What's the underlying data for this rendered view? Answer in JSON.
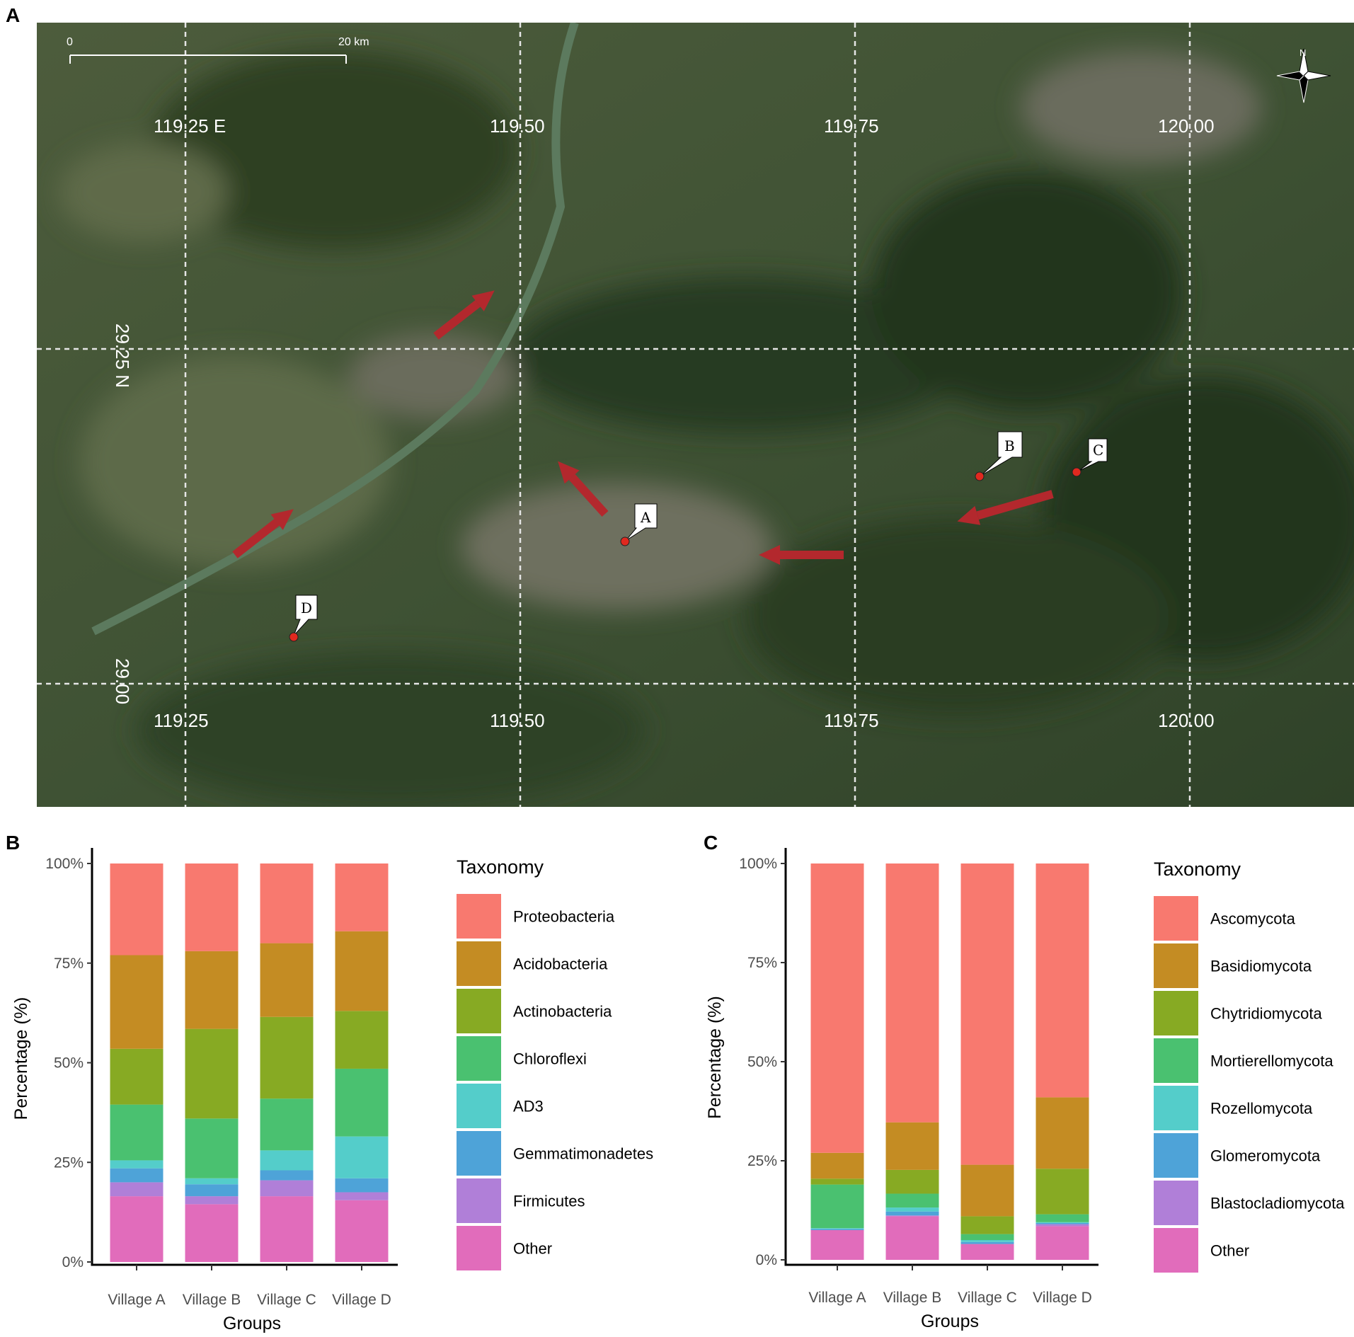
{
  "panels": {
    "a": "A",
    "b": "B",
    "c": "C"
  },
  "map": {
    "scale_bar": {
      "start": "0",
      "end": "20 km"
    },
    "north_label": "N",
    "lon_labels_top": [
      "119.25 E",
      "119.50",
      "119.75",
      "120.00"
    ],
    "lon_labels_bottom": [
      "119.25",
      "119.50",
      "119.75",
      "120.00"
    ],
    "lat_labels": [
      "29.25 N",
      "29.00"
    ],
    "sites": [
      "A",
      "B",
      "C",
      "D"
    ],
    "colors": {
      "arrow": "#b3282d",
      "site": "#e0291f"
    }
  },
  "chart_data": [
    {
      "type": "bar",
      "stacked": true,
      "categories": [
        "Village A",
        "Village B",
        "Village C",
        "Village D"
      ],
      "xlabel": "Groups",
      "ylabel": "Percentage (%)",
      "ylim": [
        0,
        100
      ],
      "yticks": [
        "0%",
        "25%",
        "50%",
        "75%",
        "100%"
      ],
      "legend_title": "Taxonomy",
      "legend_position": "right",
      "series": [
        {
          "name": "Other",
          "color": "#e16cbb",
          "values": [
            16.5,
            14.5,
            16.5,
            15.5
          ]
        },
        {
          "name": "Firmicutes",
          "color": "#b07fd8",
          "values": [
            3.5,
            2,
            4,
            2
          ]
        },
        {
          "name": "Gemmatimonadetes",
          "color": "#4ea3d8",
          "values": [
            3.5,
            3,
            2.5,
            3.5
          ]
        },
        {
          "name": "AD3",
          "color": "#54cdca",
          "values": [
            2,
            1.5,
            5,
            10.5
          ]
        },
        {
          "name": "Chloroflexi",
          "color": "#4ac170",
          "values": [
            14,
            15,
            13,
            17
          ]
        },
        {
          "name": "Actinobacteria",
          "color": "#87aa23",
          "values": [
            14,
            22.5,
            20.5,
            14.5
          ]
        },
        {
          "name": "Acidobacteria",
          "color": "#c48c23",
          "values": [
            23.5,
            19.5,
            18.5,
            20
          ]
        },
        {
          "name": "Proteobacteria",
          "color": "#f8796f",
          "values": [
            23,
            22,
            20,
            17
          ]
        }
      ]
    },
    {
      "type": "bar",
      "stacked": true,
      "categories": [
        "Village A",
        "Village B",
        "Village C",
        "Village D"
      ],
      "xlabel": "Groups",
      "ylabel": "Percentage (%)",
      "ylim": [
        0,
        100
      ],
      "yticks": [
        "0%",
        "25%",
        "50%",
        "75%",
        "100%"
      ],
      "legend_title": "Taxonomy",
      "legend_position": "right",
      "series": [
        {
          "name": "Other",
          "color": "#e16cbb",
          "values": [
            7.5,
            11,
            4,
            8.5
          ]
        },
        {
          "name": "Blastocladiomycota",
          "color": "#b07fd8",
          "values": [
            0,
            0.2,
            0,
            0.5
          ]
        },
        {
          "name": "Glomeromycota",
          "color": "#4ea3d8",
          "values": [
            0.3,
            1,
            0.5,
            0.3
          ]
        },
        {
          "name": "Rozellomycota",
          "color": "#54cdca",
          "values": [
            0.2,
            1,
            0.5,
            0.2
          ]
        },
        {
          "name": "Mortierellomycota",
          "color": "#4ac170",
          "values": [
            11,
            3.5,
            1.5,
            2
          ]
        },
        {
          "name": "Chytridiomycota",
          "color": "#87aa23",
          "values": [
            1.5,
            6,
            4.5,
            11.5
          ]
        },
        {
          "name": "Basidiomycota",
          "color": "#c48c23",
          "values": [
            6.5,
            12,
            13,
            18
          ]
        },
        {
          "name": "Ascomycota",
          "color": "#f8796f",
          "values": [
            73,
            65.3,
            76,
            59
          ]
        }
      ]
    }
  ]
}
